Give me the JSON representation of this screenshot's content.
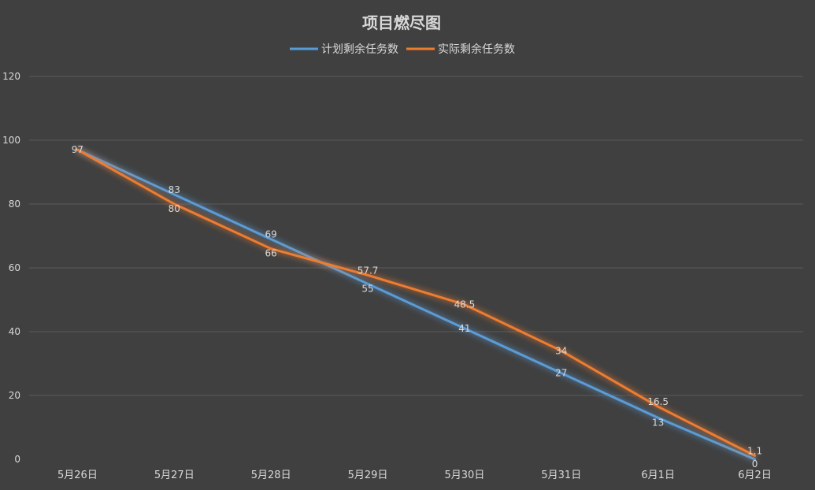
{
  "chart_data": {
    "type": "line",
    "title": "项目燃尽图",
    "xlabel": "",
    "ylabel": "",
    "categories": [
      "5月26日",
      "5月27日",
      "5月28日",
      "5月29日",
      "5月30日",
      "5月31日",
      "6月1日",
      "6月2日"
    ],
    "ylim": [
      0,
      120
    ],
    "yticks": [
      0,
      20,
      40,
      60,
      80,
      100,
      120
    ],
    "grid": true,
    "legend_position": "top",
    "series": [
      {
        "name": "计划剩余任务数",
        "color": "#5B9BD5",
        "values": [
          97,
          83,
          69,
          55,
          41,
          27,
          13,
          0
        ]
      },
      {
        "name": "实际剩余任务数",
        "color": "#ED7D31",
        "values": [
          97,
          80,
          66,
          57.7,
          48.5,
          34,
          16.5,
          1.1
        ]
      }
    ],
    "data_labels": true
  },
  "colors": {
    "background": "#404040",
    "text": "#D9D9D9",
    "grid": "#5A5A5A"
  }
}
